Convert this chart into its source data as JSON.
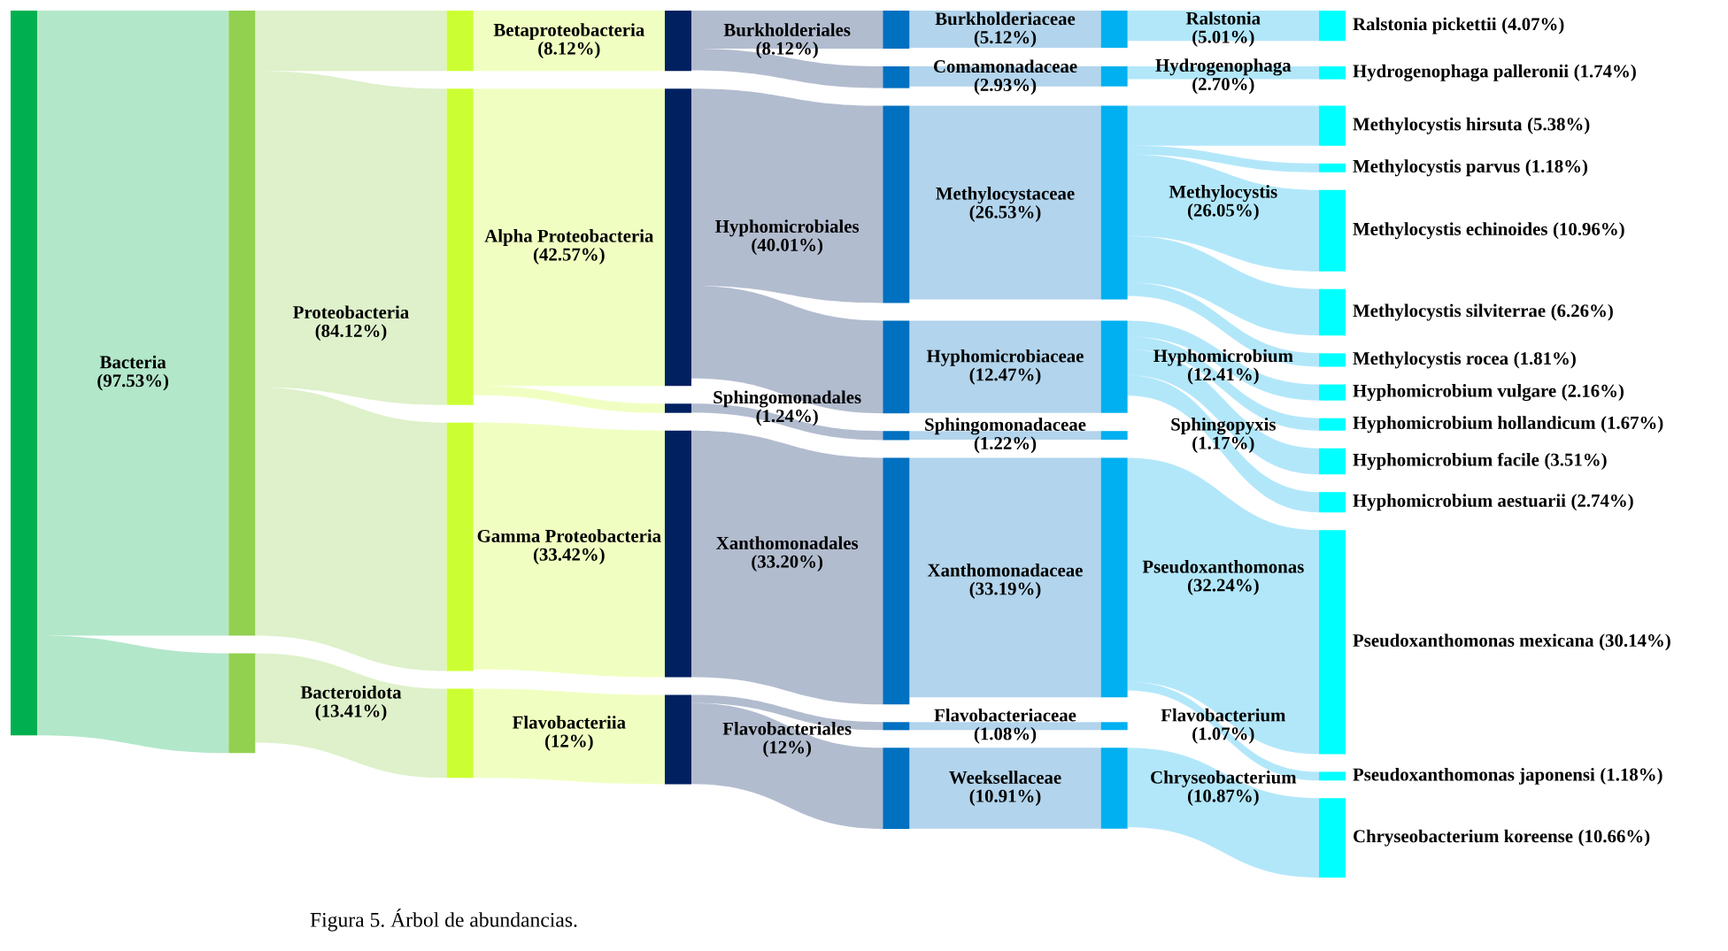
{
  "chart_data": {
    "type": "other",
    "categories": [
      "Bacteria",
      "Proteobacteria",
      "Bacteroidota",
      "Betaproteobacteria",
      "Alpha Proteobacteria",
      "Gamma Proteobacteria",
      "Flavobacteriia",
      "Burkholderiales",
      "Hyphomicrobiales",
      "Sphingomonadales",
      "Xanthomonadales",
      "Flavobacteriales",
      "Burkholderiaceae",
      "Comamonadaceae",
      "Methylocystaceae",
      "Hyphomicrobiaceae",
      "Sphingomonadaceae",
      "Xanthomonadaceae",
      "Flavobacteriaceae",
      "Weeksellaceae",
      "Ralstonia",
      "Hydrogenophaga",
      "Methylocystis",
      "Hyphomicrobium",
      "Sphingopyxis",
      "Pseudoxanthomonas",
      "Flavobacterium",
      "Chryseobacterium",
      "Ralstonia pickettii",
      "Hydrogenophaga palleronii",
      "Methylocystis hirsuta",
      "Methylocystis parvus",
      "Methylocystis echinoides",
      "Methylocystis silviterrae",
      "Methylocystis rocea",
      "Hyphomicrobium vulgare",
      "Hyphomicrobium hollandicum",
      "Hyphomicrobium facile",
      "Hyphomicrobium aestuarii",
      "Pseudoxanthomonas mexicana",
      "Pseudoxanthomonas japonensi",
      "Chryseobacterium koreense"
    ],
    "series": [
      {
        "color": "#00b050",
        "values": [
          97.53,
          null,
          null,
          null,
          null,
          null,
          null,
          null,
          null,
          null,
          null,
          null,
          null,
          null,
          null,
          null,
          null,
          null,
          null,
          null,
          null,
          null,
          null,
          null,
          null,
          null,
          null,
          null,
          null,
          null,
          null,
          null,
          null,
          null,
          null,
          null,
          null,
          null,
          null,
          null,
          null,
          null
        ],
        "value_labels": [
          "(97.53%)",
          null,
          null,
          null,
          null,
          null,
          null,
          null,
          null,
          null,
          null,
          null,
          null,
          null,
          null,
          null,
          null,
          null,
          null,
          null,
          null,
          null,
          null,
          null,
          null,
          null,
          null,
          null,
          null,
          null,
          null,
          null,
          null,
          null,
          null,
          null,
          null,
          null,
          null,
          null,
          null,
          null
        ]
      },
      {
        "color": "#92d050",
        "values": [
          null,
          84.12,
          13.41,
          null,
          null,
          null,
          null,
          null,
          null,
          null,
          null,
          null,
          null,
          null,
          null,
          null,
          null,
          null,
          null,
          null,
          null,
          null,
          null,
          null,
          null,
          null,
          null,
          null,
          null,
          null,
          null,
          null,
          null,
          null,
          null,
          null,
          null,
          null,
          null,
          null,
          null,
          null
        ],
        "value_labels": [
          null,
          "(84.12%)",
          "(13.41%)",
          null,
          null,
          null,
          null,
          null,
          null,
          null,
          null,
          null,
          null,
          null,
          null,
          null,
          null,
          null,
          null,
          null,
          null,
          null,
          null,
          null,
          null,
          null,
          null,
          null,
          null,
          null,
          null,
          null,
          null,
          null,
          null,
          null,
          null,
          null,
          null,
          null,
          null,
          null
        ]
      },
      {
        "color": "#ccff33",
        "values": [
          null,
          null,
          null,
          8.12,
          42.57,
          33.42,
          12,
          null,
          null,
          null,
          null,
          null,
          null,
          null,
          null,
          null,
          null,
          null,
          null,
          null,
          null,
          null,
          null,
          null,
          null,
          null,
          null,
          null,
          null,
          null,
          null,
          null,
          null,
          null,
          null,
          null,
          null,
          null,
          null,
          null,
          null,
          null
        ],
        "value_labels": [
          null,
          null,
          null,
          "(8.12%)",
          "(42.57%)",
          "(33.42%)",
          "(12%)",
          null,
          null,
          null,
          null,
          null,
          null,
          null,
          null,
          null,
          null,
          null,
          null,
          null,
          null,
          null,
          null,
          null,
          null,
          null,
          null,
          null,
          null,
          null,
          null,
          null,
          null,
          null,
          null,
          null,
          null,
          null,
          null,
          null,
          null,
          null
        ]
      },
      {
        "color": "#002060",
        "values": [
          null,
          null,
          null,
          null,
          null,
          null,
          null,
          8.12,
          40.01,
          1.24,
          33.2,
          12,
          null,
          null,
          null,
          null,
          null,
          null,
          null,
          null,
          null,
          null,
          null,
          null,
          null,
          null,
          null,
          null,
          null,
          null,
          null,
          null,
          null,
          null,
          null,
          null,
          null,
          null,
          null,
          null,
          null,
          null
        ],
        "value_labels": [
          null,
          null,
          null,
          null,
          null,
          null,
          null,
          "(8.12%)",
          "(40.01%)",
          "(1.24%)",
          "(33.20%)",
          "(12%)",
          null,
          null,
          null,
          null,
          null,
          null,
          null,
          null,
          null,
          null,
          null,
          null,
          null,
          null,
          null,
          null,
          null,
          null,
          null,
          null,
          null,
          null,
          null,
          null,
          null,
          null,
          null,
          null,
          null,
          null
        ]
      },
      {
        "color": "#0070c0",
        "values": [
          null,
          null,
          null,
          null,
          null,
          null,
          null,
          null,
          null,
          null,
          null,
          null,
          5.12,
          2.93,
          26.53,
          12.47,
          1.22,
          33.19,
          1.08,
          10.91,
          null,
          null,
          null,
          null,
          null,
          null,
          null,
          null,
          null,
          null,
          null,
          null,
          null,
          null,
          null,
          null,
          null,
          null,
          null,
          null,
          null,
          null
        ],
        "value_labels": [
          null,
          null,
          null,
          null,
          null,
          null,
          null,
          null,
          null,
          null,
          null,
          null,
          "(5.12%)",
          "(2.93%)",
          "(26.53%)",
          "(12.47%)",
          "(1.22%)",
          "(33.19%)",
          "(1.08%)",
          "(10.91%)",
          null,
          null,
          null,
          null,
          null,
          null,
          null,
          null,
          null,
          null,
          null,
          null,
          null,
          null,
          null,
          null,
          null,
          null,
          null,
          null,
          null,
          null
        ]
      },
      {
        "color": "#00b0f0",
        "values": [
          null,
          null,
          null,
          null,
          null,
          null,
          null,
          null,
          null,
          null,
          null,
          null,
          null,
          null,
          null,
          null,
          null,
          null,
          null,
          null,
          5.01,
          2.7,
          26.05,
          12.41,
          1.17,
          32.24,
          1.07,
          10.87,
          null,
          null,
          null,
          null,
          null,
          null,
          null,
          null,
          null,
          null,
          null,
          null,
          null,
          null
        ],
        "value_labels": [
          null,
          null,
          null,
          null,
          null,
          null,
          null,
          null,
          null,
          null,
          null,
          null,
          null,
          null,
          null,
          null,
          null,
          null,
          null,
          null,
          "(5.01%)",
          "(2.70%)",
          "(26.05%)",
          "(12.41%)",
          "(1.17%)",
          "(32.24%)",
          "(1.07%)",
          "(10.87%)",
          null,
          null,
          null,
          null,
          null,
          null,
          null,
          null,
          null,
          null,
          null,
          null,
          null,
          null
        ]
      },
      {
        "color": "#00ffff",
        "values": [
          null,
          null,
          null,
          null,
          null,
          null,
          null,
          null,
          null,
          null,
          null,
          null,
          null,
          null,
          null,
          null,
          null,
          null,
          null,
          null,
          null,
          null,
          null,
          null,
          null,
          null,
          null,
          null,
          4.07,
          1.74,
          5.38,
          1.18,
          10.96,
          6.26,
          1.81,
          2.16,
          1.67,
          3.51,
          2.74,
          30.14,
          1.18,
          10.66
        ],
        "value_labels": [
          null,
          null,
          null,
          null,
          null,
          null,
          null,
          null,
          null,
          null,
          null,
          null,
          null,
          null,
          null,
          null,
          null,
          null,
          null,
          null,
          null,
          null,
          null,
          null,
          null,
          null,
          null,
          null,
          "(4.07%)",
          "(1.74%)",
          "(5.38%)",
          "(1.18%)",
          "(10.96%)",
          "(6.26%)",
          "(1.81%)",
          "(2.16%)",
          "(1.67%)",
          "(3.51%)",
          "(2.74%)",
          "(30.14%)",
          "(1.18%)",
          "(10.66%)"
        ]
      }
    ],
    "annotations": [
      "Figura 5. Árbol de abundancias."
    ]
  }
}
